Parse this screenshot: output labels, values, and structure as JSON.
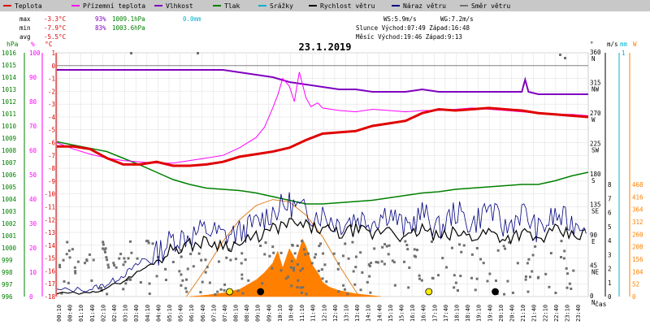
{
  "chart_data": {
    "type": "line",
    "title": "23.1.2019",
    "legend": [
      {
        "name": "Teplota",
        "color": "#e00000"
      },
      {
        "name": "Přízemní teplota",
        "color": "#ff00ff"
      },
      {
        "name": "Vlhkost",
        "color": "#8000c0"
      },
      {
        "name": "Tlak",
        "color": "#008000"
      },
      {
        "name": "Srážky",
        "color": "#00b0d0"
      },
      {
        "name": "Rychlost větru",
        "color": "#000000"
      },
      {
        "name": "Náraz větru",
        "color": "#000080"
      },
      {
        "name": "Směr větru",
        "color": "#707070"
      }
    ],
    "stats": {
      "max": {
        "label": "max",
        "temp": "-3.3°C",
        "humidity": "93%",
        "pressure": "1009.1hPa",
        "rain": "0.0mm"
      },
      "min": {
        "label": "min",
        "temp": "-7.9°C",
        "humidity": "83%",
        "pressure": "1003.6hPa"
      },
      "avg": {
        "label": "avg",
        "temp": "-5.5°C"
      },
      "ws": "WS:5.9m/s",
      "wg": "WG:7.2m/s",
      "sun": "Slunce Východ:07:49  Západ:16:48",
      "moon": "Měsíc  Východ:19:46  Západ:9:13"
    },
    "axes": {
      "hpa": {
        "unit": "hPa",
        "ticks": [
          1016,
          1015,
          1014,
          1013,
          1012,
          1011,
          1010,
          1009,
          1008,
          1007,
          1006,
          1005,
          1004,
          1003,
          1002,
          1001,
          1000,
          999,
          998,
          997,
          996
        ]
      },
      "percent": {
        "unit": "%",
        "ticks": [
          100,
          90,
          80,
          70,
          60,
          50,
          40,
          30,
          20,
          10,
          0
        ]
      },
      "celsius": {
        "unit": "°C",
        "ticks": [
          1,
          0,
          -1,
          -2,
          -3,
          -4,
          -5,
          -6,
          -7,
          -8,
          -9,
          -10,
          -11,
          -12,
          -13,
          -14,
          -15,
          -16,
          -17,
          -18
        ]
      },
      "direction": {
        "unit": "°",
        "ticks": [
          "360",
          "315",
          "270",
          "225",
          "180",
          "135",
          "90",
          "45",
          "0"
        ],
        "letters": [
          "N",
          "NW",
          "W",
          "SW",
          "S",
          "SE",
          "E",
          "NE",
          "N"
        ]
      },
      "wind": {
        "unit": "m/s",
        "ticks": [
          8,
          7,
          6,
          5,
          4,
          3,
          2,
          1,
          0
        ]
      },
      "rain": {
        "unit": "mm",
        "ticks": [
          1
        ]
      },
      "radiation": {
        "unit": "W",
        "ticks": [
          468,
          416,
          364,
          312,
          260,
          208,
          156,
          104,
          52,
          0
        ]
      },
      "time": {
        "label": "čas",
        "ticks": [
          "00:10",
          "00:40",
          "01:10",
          "01:40",
          "02:10",
          "02:40",
          "03:10",
          "03:40",
          "04:10",
          "04:40",
          "05:10",
          "05:40",
          "06:10",
          "06:40",
          "07:10",
          "07:40",
          "08:10",
          "08:40",
          "09:10",
          "09:40",
          "10:10",
          "10:40",
          "11:10",
          "11:40",
          "12:10",
          "12:40",
          "13:10",
          "13:40",
          "14:10",
          "14:40",
          "15:10",
          "15:40",
          "16:10",
          "16:40",
          "17:10",
          "17:40",
          "18:10",
          "18:40",
          "19:10",
          "19:40",
          "20:10",
          "20:40",
          "21:10",
          "21:40",
          "22:10",
          "22:40",
          "23:10",
          "23:40"
        ]
      }
    },
    "series": {
      "temperature": [
        [
          0,
          -6.3
        ],
        [
          1,
          -6.3
        ],
        [
          2,
          -6.5
        ],
        [
          3,
          -7.2
        ],
        [
          4,
          -7.7
        ],
        [
          5,
          -7.7
        ],
        [
          6,
          -7.5
        ],
        [
          7,
          -7.8
        ],
        [
          8,
          -7.8
        ],
        [
          9,
          -7.7
        ],
        [
          10,
          -7.5
        ],
        [
          11,
          -7.1
        ],
        [
          12,
          -6.9
        ],
        [
          13,
          -6.7
        ],
        [
          14,
          -6.4
        ],
        [
          15,
          -5.8
        ],
        [
          16,
          -5.3
        ],
        [
          17,
          -5.2
        ],
        [
          18,
          -5.1
        ],
        [
          19,
          -4.7
        ],
        [
          20,
          -4.5
        ],
        [
          21,
          -4.3
        ],
        [
          22,
          -3.7
        ],
        [
          23,
          -3.4
        ],
        [
          24,
          -3.5
        ],
        [
          25,
          -3.4
        ],
        [
          26,
          -3.3
        ],
        [
          27,
          -3.4
        ],
        [
          28,
          -3.5
        ],
        [
          29,
          -3.7
        ],
        [
          30,
          -3.8
        ],
        [
          31,
          -3.9
        ],
        [
          32,
          -4.0
        ]
      ],
      "ground_temp": [
        [
          0,
          -6.0
        ],
        [
          1,
          -6.5
        ],
        [
          2,
          -6.9
        ],
        [
          3,
          -7.2
        ],
        [
          4,
          -7.4
        ],
        [
          5,
          -7.5
        ],
        [
          6,
          -7.6
        ],
        [
          7,
          -7.6
        ],
        [
          8,
          -7.4
        ],
        [
          9,
          -7.2
        ],
        [
          10,
          -7.0
        ],
        [
          11,
          -6.4
        ],
        [
          12,
          -5.6
        ],
        [
          12.5,
          -4.8
        ],
        [
          13,
          -3.3
        ],
        [
          13.3,
          -2.3
        ],
        [
          13.6,
          -1.0
        ],
        [
          14,
          -1.6
        ],
        [
          14.3,
          -2.8
        ],
        [
          14.6,
          -0.5
        ],
        [
          15,
          -2.5
        ],
        [
          15.3,
          -3.2
        ],
        [
          15.7,
          -2.9
        ],
        [
          16,
          -3.3
        ],
        [
          17,
          -3.5
        ],
        [
          18,
          -3.6
        ],
        [
          19,
          -3.4
        ],
        [
          20,
          -3.5
        ],
        [
          21,
          -3.6
        ],
        [
          22,
          -3.5
        ],
        [
          23,
          -3.5
        ],
        [
          24,
          -3.4
        ],
        [
          25,
          -3.3
        ],
        [
          26,
          -3.4
        ],
        [
          27,
          -3.5
        ],
        [
          28,
          -3.6
        ],
        [
          29,
          -3.7
        ],
        [
          30,
          -3.8
        ],
        [
          31,
          -3.8
        ],
        [
          32,
          -3.9
        ]
      ],
      "humidity": [
        [
          0,
          93
        ],
        [
          6,
          93
        ],
        [
          10,
          93
        ],
        [
          11,
          92
        ],
        [
          12,
          91
        ],
        [
          13,
          90
        ],
        [
          14,
          88
        ],
        [
          15,
          87
        ],
        [
          16,
          86
        ],
        [
          17,
          85
        ],
        [
          18,
          85
        ],
        [
          19,
          84
        ],
        [
          20,
          84
        ],
        [
          21,
          84
        ],
        [
          22,
          85
        ],
        [
          23,
          84
        ],
        [
          24,
          84
        ],
        [
          25,
          84
        ],
        [
          26,
          84
        ],
        [
          27,
          84
        ],
        [
          28,
          84
        ],
        [
          28.2,
          89
        ],
        [
          28.4,
          84
        ],
        [
          29,
          83
        ],
        [
          30,
          83
        ],
        [
          31,
          83
        ],
        [
          32,
          83
        ]
      ],
      "pressure": [
        [
          0,
          1008.7
        ],
        [
          3,
          1007.9
        ],
        [
          5,
          1006.8
        ],
        [
          6,
          1006.2
        ],
        [
          7,
          1005.6
        ],
        [
          8,
          1005.2
        ],
        [
          9,
          1004.9
        ],
        [
          10,
          1004.8
        ],
        [
          11,
          1004.7
        ],
        [
          12,
          1004.5
        ],
        [
          13,
          1004.2
        ],
        [
          14,
          1003.9
        ],
        [
          15,
          1003.6
        ],
        [
          16,
          1003.6
        ],
        [
          17,
          1003.7
        ],
        [
          18,
          1003.8
        ],
        [
          19,
          1003.9
        ],
        [
          20,
          1004.1
        ],
        [
          21,
          1004.3
        ],
        [
          22,
          1004.5
        ],
        [
          23,
          1004.6
        ],
        [
          24,
          1004.8
        ],
        [
          25,
          1004.9
        ],
        [
          26,
          1005.0
        ],
        [
          27,
          1005.1
        ],
        [
          28,
          1005.2
        ],
        [
          29,
          1005.2
        ],
        [
          30,
          1005.5
        ],
        [
          31,
          1005.9
        ],
        [
          32,
          1006.2
        ]
      ],
      "wind_speed": [
        [
          0,
          0.2
        ],
        [
          2,
          0.2
        ],
        [
          3,
          0.6
        ],
        [
          4,
          1.0
        ],
        [
          5,
          1.7
        ],
        [
          6,
          2.3
        ],
        [
          7,
          3.2
        ],
        [
          8,
          3.4
        ],
        [
          9,
          3.6
        ],
        [
          10,
          3.4
        ],
        [
          11,
          3.4
        ],
        [
          12,
          3.9
        ],
        [
          13,
          4.4
        ],
        [
          14,
          4.8
        ],
        [
          15,
          4.6
        ],
        [
          16,
          4.4
        ],
        [
          17,
          4.1
        ],
        [
          18,
          4.4
        ],
        [
          19,
          4.0
        ],
        [
          20,
          4.6
        ],
        [
          21,
          3.7
        ],
        [
          22,
          4.5
        ],
        [
          23,
          3.8
        ],
        [
          24,
          4.2
        ],
        [
          25,
          3.9
        ],
        [
          26,
          4.3
        ],
        [
          27,
          3.8
        ],
        [
          28,
          4.2
        ],
        [
          29,
          3.7
        ],
        [
          30,
          4.3
        ],
        [
          31,
          4.0
        ],
        [
          32,
          4.1
        ]
      ],
      "wind_gust": [
        [
          0,
          0.4
        ],
        [
          2,
          0.5
        ],
        [
          3,
          0.8
        ],
        [
          4,
          1.4
        ],
        [
          5,
          2.2
        ],
        [
          6,
          2.8
        ],
        [
          7,
          3.8
        ],
        [
          8,
          4.0
        ],
        [
          9,
          4.4
        ],
        [
          10,
          4.0
        ],
        [
          11,
          4.2
        ],
        [
          12,
          4.8
        ],
        [
          13,
          5.6
        ],
        [
          14,
          6.1
        ],
        [
          15,
          5.5
        ],
        [
          16,
          5.4
        ],
        [
          17,
          4.8
        ],
        [
          18,
          5.2
        ],
        [
          19,
          5.0
        ],
        [
          20,
          5.6
        ],
        [
          21,
          4.4
        ],
        [
          22,
          5.5
        ],
        [
          23,
          4.4
        ],
        [
          24,
          5.6
        ],
        [
          25,
          4.7
        ],
        [
          26,
          5.9
        ],
        [
          27,
          4.4
        ],
        [
          28,
          5.6
        ],
        [
          29,
          4.3
        ],
        [
          30,
          5.3
        ],
        [
          31,
          4.8
        ],
        [
          32,
          5.0
        ]
      ],
      "radiation": [
        [
          8,
          0
        ],
        [
          9,
          6
        ],
        [
          10,
          15
        ],
        [
          11,
          30
        ],
        [
          12,
          70
        ],
        [
          12.5,
          100
        ],
        [
          13,
          140
        ],
        [
          13.3,
          190
        ],
        [
          13.6,
          120
        ],
        [
          14,
          200
        ],
        [
          14.4,
          150
        ],
        [
          14.8,
          240
        ],
        [
          15,
          210
        ],
        [
          15.4,
          130
        ],
        [
          15.8,
          90
        ],
        [
          16,
          60
        ],
        [
          16.4,
          40
        ],
        [
          17,
          25
        ],
        [
          18,
          12
        ],
        [
          19,
          4
        ],
        [
          19.5,
          0
        ]
      ],
      "sun_curve": [
        [
          7.8,
          0
        ],
        [
          9,
          120
        ],
        [
          10,
          230
        ],
        [
          11,
          320
        ],
        [
          12,
          380
        ],
        [
          13,
          405
        ],
        [
          14,
          395
        ],
        [
          15,
          340
        ],
        [
          16,
          250
        ],
        [
          17,
          130
        ],
        [
          18.2,
          0
        ]
      ]
    },
    "markers": [
      {
        "t": "07:49",
        "x": 7.8,
        "kind": "sunrise",
        "color": "#ffee00"
      },
      {
        "t": "16:48",
        "x": 16.8,
        "kind": "sunset",
        "color": "#ffee00"
      },
      {
        "t": "09:13",
        "x": 9.2,
        "kind": "moonset",
        "color": "#000000"
      },
      {
        "t": "19:46",
        "x": 19.8,
        "kind": "moonrise",
        "color": "#000000"
      }
    ]
  }
}
